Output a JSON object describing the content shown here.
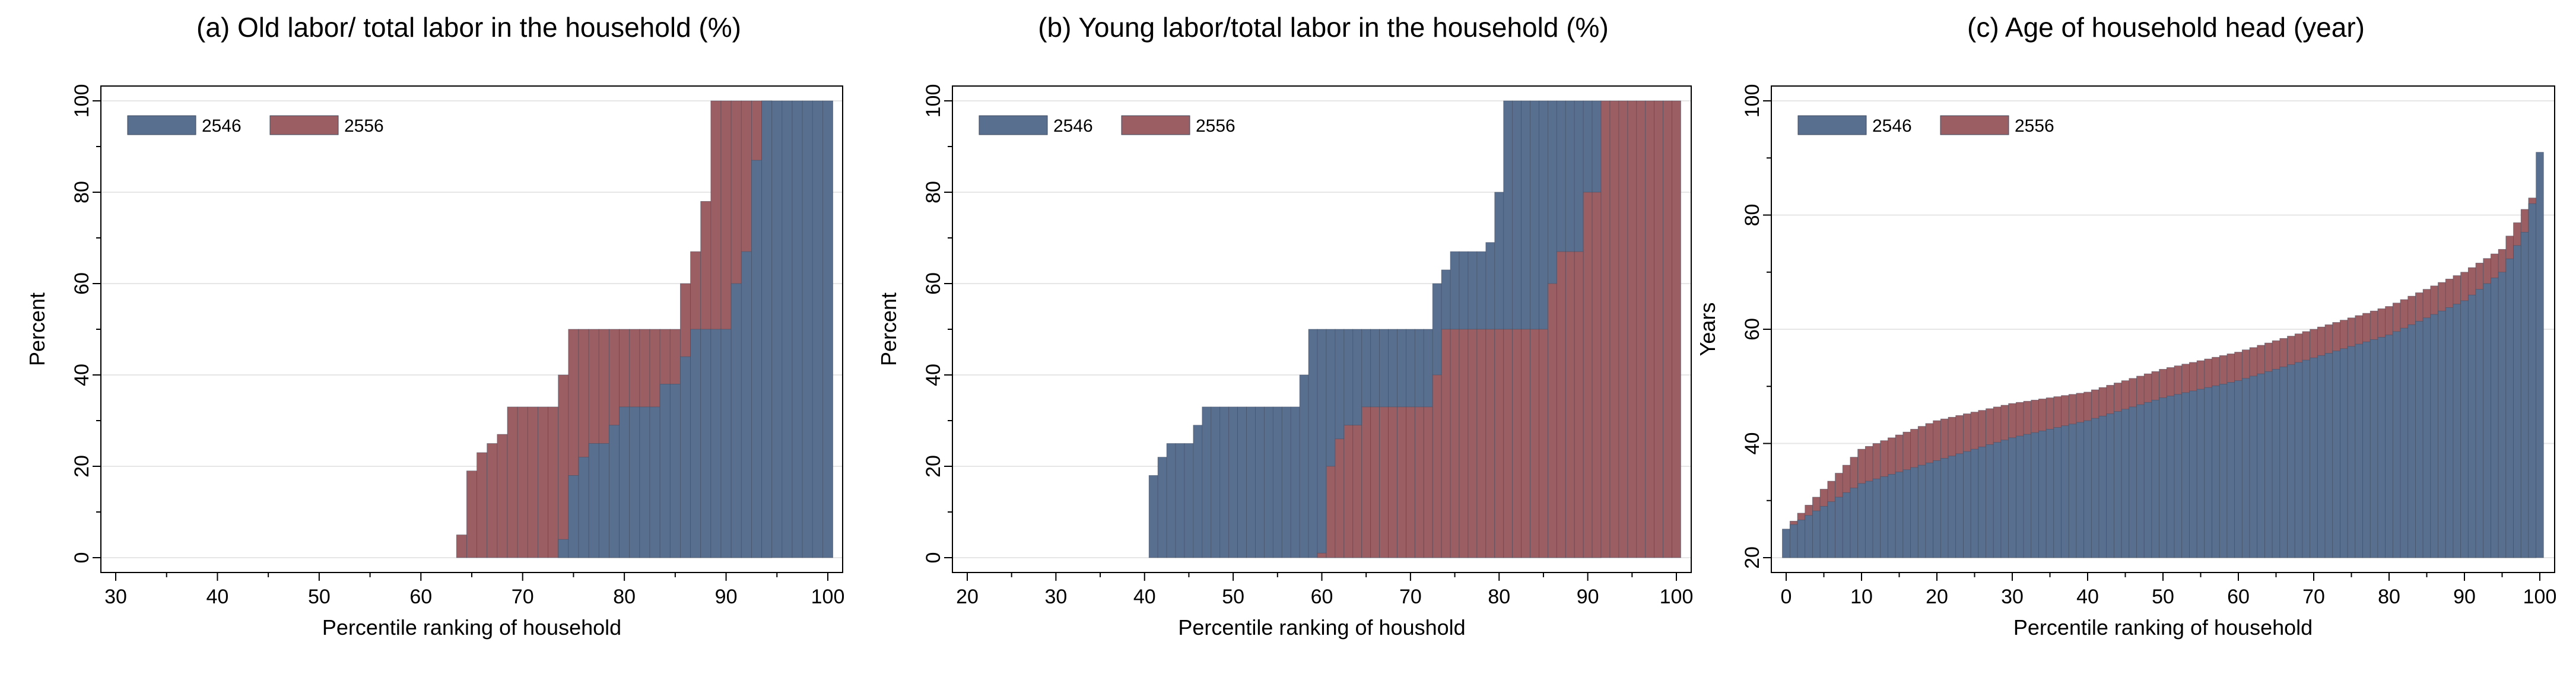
{
  "colors": {
    "blue": "#596f8f",
    "red": "#9b5e63",
    "bar_edge": "#3e4a5c",
    "grid": "#e6e6e6",
    "axis": "#000000"
  },
  "chart_data": [
    {
      "type": "bar",
      "title": "(a) Old labor/ total labor in the household (%)",
      "xlabel": "Percentile ranking of household",
      "ylabel": "Percent",
      "xlim": [
        30,
        100
      ],
      "ylim": [
        0,
        100
      ],
      "xticks": [
        "30",
        "40",
        "50",
        "60",
        "70",
        "80",
        "90",
        "100"
      ],
      "yticks": [
        "0",
        "20",
        "40",
        "60",
        "80",
        "100"
      ],
      "grid": true,
      "legend_position": "top-left",
      "series": [
        {
          "name": "2556",
          "color": "#9b5e63",
          "steps": [
            [
              63.5,
              5
            ],
            [
              64.5,
              19
            ],
            [
              65.5,
              23
            ],
            [
              66.5,
              25
            ],
            [
              67.5,
              27
            ],
            [
              68.5,
              33
            ],
            [
              74,
              40
            ],
            [
              75,
              50
            ],
            [
              85.5,
              60
            ],
            [
              86.5,
              67
            ],
            [
              87.5,
              78
            ],
            [
              88.5,
              100
            ],
            [
              94.5,
              100
            ]
          ]
        },
        {
          "name": "2546",
          "color": "#596f8f",
          "steps": [
            [
              74,
              4
            ],
            [
              74.5,
              18
            ],
            [
              75.5,
              22
            ],
            [
              77,
              25
            ],
            [
              78.5,
              29
            ],
            [
              79.5,
              33
            ],
            [
              84,
              38
            ],
            [
              85.5,
              44
            ],
            [
              86.5,
              50
            ],
            [
              91,
              60
            ],
            [
              92,
              67
            ],
            [
              93,
              87
            ],
            [
              94,
              100
            ],
            [
              100.5,
              100
            ]
          ]
        }
      ]
    },
    {
      "type": "bar",
      "title": "(b) Young labor/total labor in the household (%)",
      "xlabel": "Percentile ranking of houshold",
      "ylabel": "Percent",
      "xlim": [
        20,
        100
      ],
      "ylim": [
        0,
        100
      ],
      "xticks": [
        "20",
        "30",
        "40",
        "50",
        "60",
        "70",
        "80",
        "90",
        "100"
      ],
      "yticks": [
        "0",
        "20",
        "40",
        "60",
        "80",
        "100"
      ],
      "grid": true,
      "legend_position": "top-left",
      "series": [
        {
          "name": "2546",
          "color": "#596f8f",
          "steps": [
            [
              39.5,
              0
            ],
            [
              40.5,
              18
            ],
            [
              41.5,
              22
            ],
            [
              42.5,
              25
            ],
            [
              45.5,
              29
            ],
            [
              46.5,
              33
            ],
            [
              57.5,
              40
            ],
            [
              58.5,
              50
            ],
            [
              72.5,
              60
            ],
            [
              73.5,
              63
            ],
            [
              74.5,
              67
            ],
            [
              78.5,
              69
            ],
            [
              79.5,
              80
            ],
            [
              80.5,
              100
            ],
            [
              91.5,
              100
            ]
          ]
        },
        {
          "name": "2556",
          "color": "#9b5e63",
          "steps": [
            [
              60,
              1
            ],
            [
              60.5,
              7
            ],
            [
              61,
              20
            ],
            [
              61.5,
              24
            ],
            [
              62,
              26
            ],
            [
              63,
              29
            ],
            [
              64.5,
              33
            ],
            [
              72.5,
              40
            ],
            [
              73.5,
              50
            ],
            [
              86,
              60
            ],
            [
              87,
              67
            ],
            [
              89.5,
              80
            ],
            [
              91.5,
              100
            ],
            [
              100.5,
              100
            ]
          ]
        }
      ]
    },
    {
      "type": "bar",
      "title": "(c) Age of household head (year)",
      "xlabel": "Percentile ranking of household",
      "ylabel": "Years",
      "xlim": [
        0,
        100
      ],
      "ylim": [
        20,
        100
      ],
      "xticks": [
        "0",
        "10",
        "20",
        "30",
        "40",
        "50",
        "60",
        "70",
        "80",
        "90",
        "100"
      ],
      "yticks": [
        "20",
        "40",
        "60",
        "80",
        "100"
      ],
      "grid": true,
      "legend_position": "top-left",
      "series": [
        {
          "name": "2556",
          "color": "#9b5e63",
          "points": [
            [
              0,
              25
            ],
            [
              10,
              39
            ],
            [
              20,
              44
            ],
            [
              30,
              47
            ],
            [
              40,
              49
            ],
            [
              50,
              53
            ],
            [
              60,
              56
            ],
            [
              70,
              60
            ],
            [
              80,
              64
            ],
            [
              90,
              70
            ],
            [
              95,
              74
            ],
            [
              98,
              81
            ],
            [
              99.5,
              84
            ]
          ]
        },
        {
          "name": "2546",
          "color": "#596f8f",
          "points": [
            [
              0,
              25
            ],
            [
              10,
              33
            ],
            [
              20,
              37
            ],
            [
              30,
              41
            ],
            [
              40,
              44
            ],
            [
              50,
              48
            ],
            [
              60,
              51
            ],
            [
              70,
              55
            ],
            [
              80,
              59
            ],
            [
              90,
              65
            ],
            [
              95,
              70
            ],
            [
              98,
              77
            ],
            [
              99,
              82
            ],
            [
              100,
              91
            ]
          ]
        }
      ]
    }
  ]
}
